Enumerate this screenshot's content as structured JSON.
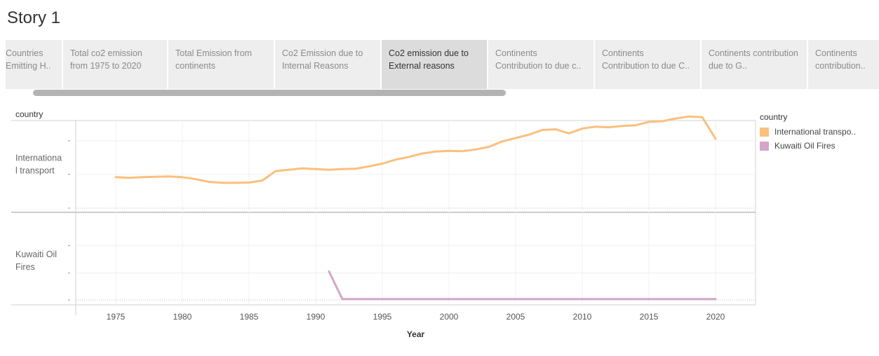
{
  "story": {
    "title": "Story 1"
  },
  "tabs": [
    {
      "label": "Countries Emitting H..",
      "active": false
    },
    {
      "label": "Total co2 emission from 1975 to 2020",
      "active": false
    },
    {
      "label": "Total Emission from continents",
      "active": false
    },
    {
      "label": "Co2 Emission due to Internal Reasons",
      "active": false
    },
    {
      "label": "Co2 emission due to External reasons",
      "active": true
    },
    {
      "label": "Continents Contribution to due c..",
      "active": false
    },
    {
      "label": "Continents Contribution to due C..",
      "active": false
    },
    {
      "label": "Continents contribution due to G..",
      "active": false
    },
    {
      "label": "Continents contribution..",
      "active": false
    }
  ],
  "legend": {
    "title": "country",
    "items": [
      {
        "label": "International transpo..",
        "color": "#fbbf7e"
      },
      {
        "label": "Kuwaiti Oil Fires",
        "color": "#d4a6c8"
      }
    ]
  },
  "chart_data": {
    "type": "line",
    "row_header": "country",
    "xlabel": "Year",
    "x_ticks": [
      1975,
      1980,
      1985,
      1990,
      1995,
      2000,
      2005,
      2010,
      2015,
      2020
    ],
    "xlim": [
      1972,
      2023
    ],
    "grid": true,
    "legend_position": "right",
    "panels": [
      {
        "label_lines": [
          "Internationa",
          "l transport"
        ],
        "color": "#fbbf7e",
        "ylim": [
          0,
          1.3
        ],
        "y_ticks": [
          0,
          0.5,
          1.0
        ],
        "series": {
          "name": "International transport",
          "x": [
            1975,
            1976,
            1977,
            1978,
            1979,
            1980,
            1981,
            1982,
            1983,
            1984,
            1985,
            1986,
            1987,
            1988,
            1989,
            1990,
            1991,
            1992,
            1993,
            1994,
            1995,
            1996,
            1997,
            1998,
            1999,
            2000,
            2001,
            2002,
            2003,
            2004,
            2005,
            2006,
            2007,
            2008,
            2009,
            2010,
            2011,
            2012,
            2013,
            2014,
            2015,
            2016,
            2017,
            2018,
            2019,
            2020
          ],
          "y": [
            0.46,
            0.45,
            0.46,
            0.465,
            0.47,
            0.46,
            0.43,
            0.39,
            0.375,
            0.375,
            0.38,
            0.41,
            0.55,
            0.57,
            0.59,
            0.58,
            0.57,
            0.58,
            0.585,
            0.62,
            0.66,
            0.72,
            0.76,
            0.81,
            0.84,
            0.85,
            0.845,
            0.87,
            0.91,
            0.99,
            1.04,
            1.09,
            1.16,
            1.17,
            1.11,
            1.18,
            1.21,
            1.2,
            1.22,
            1.23,
            1.28,
            1.29,
            1.33,
            1.36,
            1.35,
            1.03
          ]
        }
      },
      {
        "label_lines": [
          "Kuwaiti Oil",
          "Fires"
        ],
        "color": "#d4a6c8",
        "ylim": [
          0,
          1.0
        ],
        "y_ticks": [
          0,
          0.33,
          0.67
        ],
        "series": {
          "name": "Kuwaiti Oil Fires",
          "x": [
            1991,
            1992,
            1993,
            1994,
            1995,
            1996,
            1997,
            1998,
            1999,
            2000,
            2001,
            2002,
            2003,
            2004,
            2005,
            2006,
            2007,
            2008,
            2009,
            2010,
            2011,
            2012,
            2013,
            2014,
            2015,
            2016,
            2017,
            2018,
            2019,
            2020
          ],
          "y": [
            0.35,
            0.01,
            0.01,
            0.01,
            0.01,
            0.01,
            0.01,
            0.01,
            0.01,
            0.01,
            0.01,
            0.01,
            0.01,
            0.01,
            0.01,
            0.01,
            0.01,
            0.01,
            0.01,
            0.01,
            0.01,
            0.01,
            0.01,
            0.01,
            0.01,
            0.01,
            0.01,
            0.01,
            0.01,
            0.01
          ]
        }
      }
    ]
  }
}
